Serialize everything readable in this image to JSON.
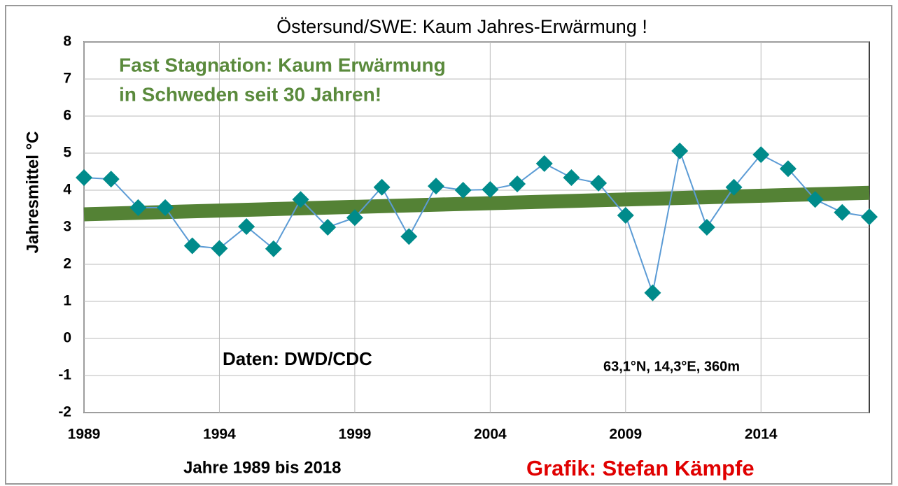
{
  "chart_data": {
    "type": "line",
    "title": "Östersund/SWE:  Kaum Jahres-Erwärmung  !",
    "annotations": [
      "Fast Stagnation: Kaum Erwärmung",
      "in Schweden seit 30 Jahren!",
      "Daten: DWD/CDC",
      "63,1°N, 14,3°E, 360m",
      "Grafik: Stefan Kämpfe"
    ],
    "xlabel": "Jahre 1989 bis 2018",
    "ylabel": "Jahresmittel °C",
    "x": [
      1989,
      1990,
      1991,
      1992,
      1993,
      1994,
      1995,
      1996,
      1997,
      1998,
      1999,
      2000,
      2001,
      2002,
      2003,
      2004,
      2005,
      2006,
      2007,
      2008,
      2009,
      2010,
      2011,
      2012,
      2013,
      2014,
      2015,
      2016,
      2017,
      2018
    ],
    "series": [
      {
        "color": "#5b9bd5",
        "marker_color": "#008b8b",
        "values": [
          4.34,
          4.3,
          3.53,
          3.53,
          2.5,
          2.43,
          3.02,
          2.42,
          3.75,
          3.0,
          3.26,
          4.08,
          2.75,
          4.11,
          4.0,
          4.02,
          4.17,
          4.72,
          4.34,
          4.19,
          3.32,
          1.23,
          5.06,
          3.0,
          4.08,
          4.96,
          4.58,
          3.75,
          3.4,
          3.28
        ]
      }
    ],
    "trend": {
      "x": [
        1989,
        2018
      ],
      "values": [
        3.35,
        3.93
      ],
      "color": "#548235"
    },
    "xlim": [
      1989,
      2018
    ],
    "xticks": [
      1989,
      1994,
      1999,
      2004,
      2009,
      2014
    ],
    "ylim": [
      -2,
      8
    ],
    "yticks": [
      -2,
      -1,
      0,
      1,
      2,
      3,
      4,
      5,
      6,
      7,
      8
    ],
    "grid": true
  }
}
